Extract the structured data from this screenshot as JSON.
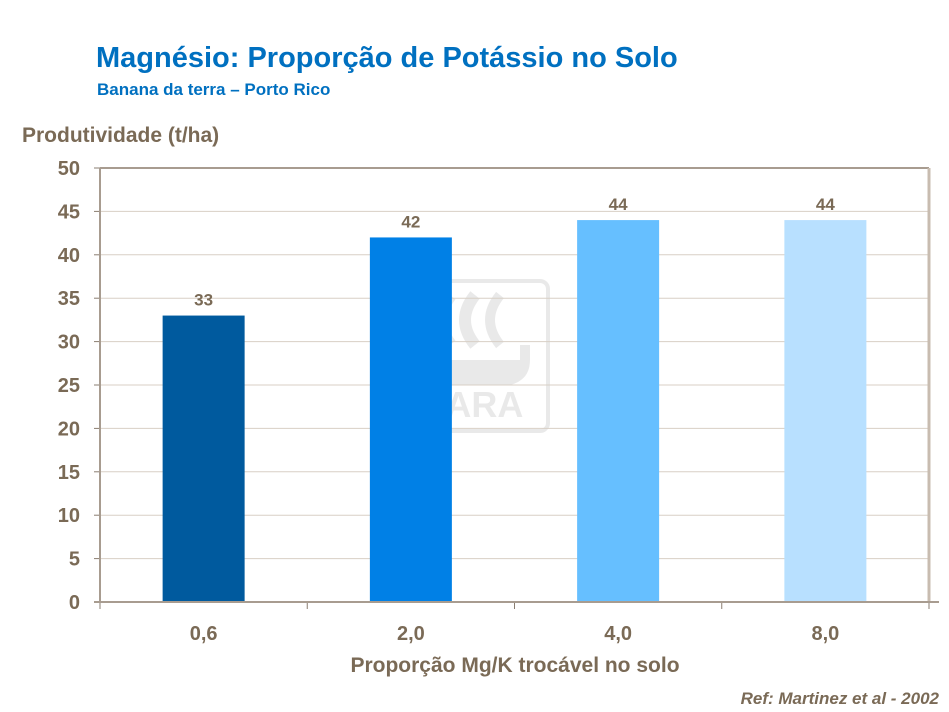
{
  "chart_data": {
    "type": "bar",
    "title": "Magnésio: Proporção de Potássio no Solo",
    "subtitle": "Banana da terra – Porto Rico",
    "ylabel": "Produtividade (t/ha)",
    "xlabel": "Proporção Mg/K trocável no solo",
    "categories": [
      "0,6",
      "2,0",
      "4,0",
      "8,0"
    ],
    "values": [
      33,
      42,
      44,
      44
    ],
    "data_labels": [
      "33",
      "42",
      "44",
      "44"
    ],
    "colors": [
      "#005a9e",
      "#0080e6",
      "#66bfff",
      "#b8e0ff"
    ],
    "ylim": [
      0,
      50
    ],
    "yticks": [
      0,
      5,
      10,
      15,
      20,
      25,
      30,
      35,
      40,
      45,
      50
    ],
    "grid": true,
    "legend": "none",
    "watermark": "YARA",
    "annotation": "Ref: Martinez et al - 2002"
  }
}
